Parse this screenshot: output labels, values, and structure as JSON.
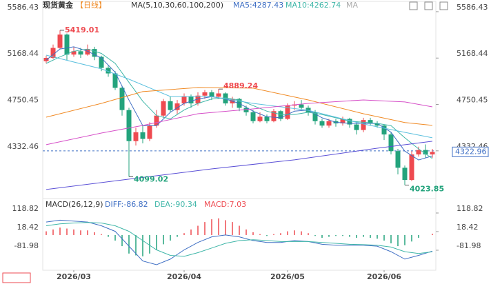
{
  "chart_data": [
    {
      "type": "candlestick",
      "title": "现货黄金",
      "subtitle": "【日线】",
      "indicator_label": "MA(5,10,30,60,100,200)",
      "legend_more": "MA",
      "up_color": "#ee4a50",
      "down_color": "#23a37c",
      "xlim": [
        -0.5,
        56.5
      ],
      "xticks": [
        {
          "value": 4,
          "label": "2026/03"
        },
        {
          "value": 20,
          "label": "2026/04"
        },
        {
          "value": 35,
          "label": "2026/05"
        },
        {
          "value": 49,
          "label": "2026/06"
        }
      ],
      "ylim": [
        3940,
        5642
      ],
      "yticks": [
        4332.46,
        4750.45,
        5168.44,
        5586.43
      ],
      "candles": [
        {
          "open": 5140,
          "high": 5190,
          "low": 5120,
          "close": 5170
        },
        {
          "open": 5170,
          "high": 5290,
          "low": 5160,
          "close": 5260
        },
        {
          "open": 5260,
          "high": 5419.01,
          "low": 5250,
          "close": 5380
        },
        {
          "open": 5380,
          "high": 5390,
          "low": 5150,
          "close": 5200
        },
        {
          "open": 5200,
          "high": 5270,
          "low": 5180,
          "close": 5230
        },
        {
          "open": 5230,
          "high": 5260,
          "low": 5170,
          "close": 5200
        },
        {
          "open": 5200,
          "high": 5290,
          "low": 5190,
          "close": 5250
        },
        {
          "open": 5250,
          "high": 5270,
          "low": 5150,
          "close": 5180
        },
        {
          "open": 5180,
          "high": 5190,
          "low": 5050,
          "close": 5080
        },
        {
          "open": 5080,
          "high": 5100,
          "low": 5000,
          "close": 5030
        },
        {
          "open": 5030,
          "high": 5050,
          "low": 4880,
          "close": 4900
        },
        {
          "open": 4900,
          "high": 4920,
          "low": 4650,
          "close": 4700
        },
        {
          "open": 4700,
          "high": 4720,
          "low": 4099.02,
          "close": 4420
        },
        {
          "open": 4420,
          "high": 4540,
          "low": 4380,
          "close": 4500
        },
        {
          "open": 4500,
          "high": 4560,
          "low": 4400,
          "close": 4440
        },
        {
          "open": 4440,
          "high": 4590,
          "low": 4420,
          "close": 4560
        },
        {
          "open": 4560,
          "high": 4700,
          "low": 4540,
          "close": 4650
        },
        {
          "open": 4650,
          "high": 4800,
          "low": 4630,
          "close": 4780
        },
        {
          "open": 4780,
          "high": 4820,
          "low": 4680,
          "close": 4700
        },
        {
          "open": 4700,
          "high": 4790,
          "low": 4660,
          "close": 4760
        },
        {
          "open": 4760,
          "high": 4850,
          "low": 4740,
          "close": 4820
        },
        {
          "open": 4820,
          "high": 4840,
          "low": 4720,
          "close": 4760
        },
        {
          "open": 4760,
          "high": 4860,
          "low": 4740,
          "close": 4830
        },
        {
          "open": 4830,
          "high": 4880,
          "low": 4800,
          "close": 4860
        },
        {
          "open": 4860,
          "high": 4880,
          "low": 4790,
          "close": 4820
        },
        {
          "open": 4820,
          "high": 4889.24,
          "low": 4800,
          "close": 4850
        },
        {
          "open": 4850,
          "high": 4860,
          "low": 4740,
          "close": 4760
        },
        {
          "open": 4760,
          "high": 4820,
          "low": 4720,
          "close": 4800
        },
        {
          "open": 4800,
          "high": 4810,
          "low": 4690,
          "close": 4720
        },
        {
          "open": 4720,
          "high": 4740,
          "low": 4650,
          "close": 4680
        },
        {
          "open": 4680,
          "high": 4700,
          "low": 4580,
          "close": 4600
        },
        {
          "open": 4600,
          "high": 4680,
          "low": 4590,
          "close": 4640
        },
        {
          "open": 4640,
          "high": 4660,
          "low": 4580,
          "close": 4600
        },
        {
          "open": 4600,
          "high": 4710,
          "low": 4590,
          "close": 4690
        },
        {
          "open": 4690,
          "high": 4700,
          "low": 4600,
          "close": 4620
        },
        {
          "open": 4620,
          "high": 4760,
          "low": 4610,
          "close": 4740
        },
        {
          "open": 4740,
          "high": 4780,
          "low": 4700,
          "close": 4750
        },
        {
          "open": 4750,
          "high": 4790,
          "low": 4700,
          "close": 4720
        },
        {
          "open": 4720,
          "high": 4740,
          "low": 4650,
          "close": 4680
        },
        {
          "open": 4680,
          "high": 4700,
          "low": 4570,
          "close": 4600
        },
        {
          "open": 4600,
          "high": 4620,
          "low": 4540,
          "close": 4560
        },
        {
          "open": 4560,
          "high": 4620,
          "low": 4540,
          "close": 4600
        },
        {
          "open": 4600,
          "high": 4620,
          "low": 4550,
          "close": 4580
        },
        {
          "open": 4580,
          "high": 4640,
          "low": 4560,
          "close": 4620
        },
        {
          "open": 4620,
          "high": 4630,
          "low": 4540,
          "close": 4570
        },
        {
          "open": 4570,
          "high": 4590,
          "low": 4480,
          "close": 4520
        },
        {
          "open": 4520,
          "high": 4630,
          "low": 4500,
          "close": 4610
        },
        {
          "open": 4610,
          "high": 4630,
          "low": 4560,
          "close": 4580
        },
        {
          "open": 4580,
          "high": 4600,
          "low": 4540,
          "close": 4560
        },
        {
          "open": 4560,
          "high": 4570,
          "low": 4430,
          "close": 4480
        },
        {
          "open": 4480,
          "high": 4500,
          "low": 4300,
          "close": 4330
        },
        {
          "open": 4330,
          "high": 4350,
          "low": 4120,
          "close": 4180
        },
        {
          "open": 4180,
          "high": 4200,
          "low": 4023.85,
          "close": 4070
        },
        {
          "open": 4070,
          "high": 4330,
          "low": 4060,
          "close": 4300
        },
        {
          "open": 4300,
          "high": 4370,
          "low": 4280,
          "close": 4340
        },
        {
          "open": 4340,
          "high": 4390,
          "low": 4270,
          "close": 4300
        },
        {
          "open": 4300,
          "high": 4350,
          "low": 4270,
          "close": 4322.96
        }
      ],
      "series": [
        {
          "name": "MA5:4287.43",
          "color": "#3f6fc4",
          "x": [
            0,
            2,
            4,
            6,
            8,
            10,
            12,
            14,
            16,
            18,
            20,
            22,
            24,
            26,
            28,
            30,
            32,
            34,
            36,
            38,
            40,
            42,
            44,
            46,
            48,
            50,
            52,
            54,
            56
          ],
          "values": [
            5150,
            5250,
            5270,
            5230,
            5170,
            5040,
            4790,
            4560,
            4560,
            4680,
            4760,
            4800,
            4820,
            4800,
            4760,
            4690,
            4640,
            4630,
            4690,
            4700,
            4630,
            4590,
            4580,
            4580,
            4580,
            4500,
            4330,
            4250,
            4287.43
          ]
        },
        {
          "name": "MA10:4262.74",
          "color": "#3fb6a8",
          "x": [
            0,
            2,
            4,
            6,
            8,
            10,
            12,
            14,
            16,
            18,
            20,
            22,
            24,
            26,
            28,
            30,
            32,
            34,
            36,
            38,
            40,
            42,
            44,
            46,
            48,
            50,
            52,
            54,
            56
          ],
          "values": [
            5120,
            5180,
            5230,
            5250,
            5210,
            5120,
            4950,
            4780,
            4650,
            4620,
            4700,
            4760,
            4800,
            4810,
            4790,
            4740,
            4690,
            4660,
            4660,
            4680,
            4660,
            4630,
            4600,
            4590,
            4580,
            4560,
            4450,
            4350,
            4262.74
          ]
        },
        {
          "color": "#5bc0de",
          "x": [
            0,
            8,
            12,
            18,
            24,
            30,
            38,
            46,
            52,
            56
          ],
          "values": [
            5195,
            5071,
            4978,
            4822,
            4822,
            4760,
            4698,
            4574,
            4499,
            4450
          ]
        },
        {
          "color": "#f08a24",
          "x": [
            0,
            8,
            14,
            22,
            30,
            38,
            46,
            52,
            56
          ],
          "values": [
            4636,
            4760,
            4866,
            4903,
            4897,
            4791,
            4667,
            4587,
            4562
          ]
        },
        {
          "color": "#d64fc8",
          "x": [
            0,
            8,
            14,
            22,
            30,
            38,
            46,
            52,
            56
          ],
          "values": [
            4388,
            4493,
            4561,
            4667,
            4710,
            4760,
            4791,
            4773,
            4729
          ]
        },
        {
          "color": "#5a4fd6",
          "x": [
            0,
            12,
            24,
            36,
            48,
            56
          ],
          "values": [
            3984,
            4077,
            4170,
            4251,
            4356,
            4419
          ]
        }
      ]
    },
    {
      "type": "macd",
      "title": "MACD(26,12,9)",
      "macd_label": "MACD:7.03",
      "ylim": [
        -175,
        182
      ],
      "yticks": [
        -81.98,
        18.42,
        118.82
      ],
      "histogram": [
        20,
        30,
        40,
        35,
        30,
        25,
        25,
        15,
        5,
        -10,
        -30,
        -60,
        -100,
        -110,
        -115,
        -100,
        -80,
        -50,
        -30,
        -10,
        10,
        30,
        50,
        70,
        85,
        90,
        80,
        70,
        50,
        30,
        15,
        5,
        -5,
        5,
        10,
        20,
        25,
        20,
        10,
        -5,
        -15,
        -10,
        -5,
        -5,
        -10,
        -15,
        -10,
        -15,
        -20,
        -30,
        -45,
        -60,
        -55,
        -35,
        -15,
        0,
        7.03
      ],
      "series": [
        {
          "name": "DIFF:-86.82",
          "color": "#3f6fc4",
          "x": [
            0,
            2,
            4,
            6,
            8,
            10,
            12,
            14,
            16,
            18,
            20,
            22,
            24,
            26,
            28,
            30,
            32,
            34,
            36,
            38,
            40,
            42,
            44,
            46,
            48,
            50,
            52,
            54,
            56
          ],
          "values": [
            70,
            80,
            75,
            70,
            50,
            20,
            -60,
            -140,
            -160,
            -130,
            -80,
            -40,
            -10,
            0,
            -10,
            -30,
            -40,
            -40,
            -30,
            -35,
            -50,
            -55,
            -55,
            -55,
            -60,
            -90,
            -130,
            -110,
            -86.82
          ]
        },
        {
          "name": "DEA:-90.34",
          "color": "#3fb6a8",
          "x": [
            0,
            2,
            4,
            6,
            8,
            10,
            12,
            14,
            16,
            18,
            20,
            22,
            24,
            26,
            28,
            30,
            32,
            34,
            36,
            38,
            40,
            42,
            44,
            46,
            48,
            50,
            52,
            54,
            56
          ],
          "values": [
            50,
            60,
            65,
            68,
            65,
            50,
            20,
            -30,
            -80,
            -110,
            -115,
            -95,
            -70,
            -45,
            -30,
            -25,
            -30,
            -35,
            -35,
            -35,
            -40,
            -45,
            -50,
            -52,
            -55,
            -65,
            -90,
            -100,
            -90.34
          ]
        }
      ]
    }
  ]
}
